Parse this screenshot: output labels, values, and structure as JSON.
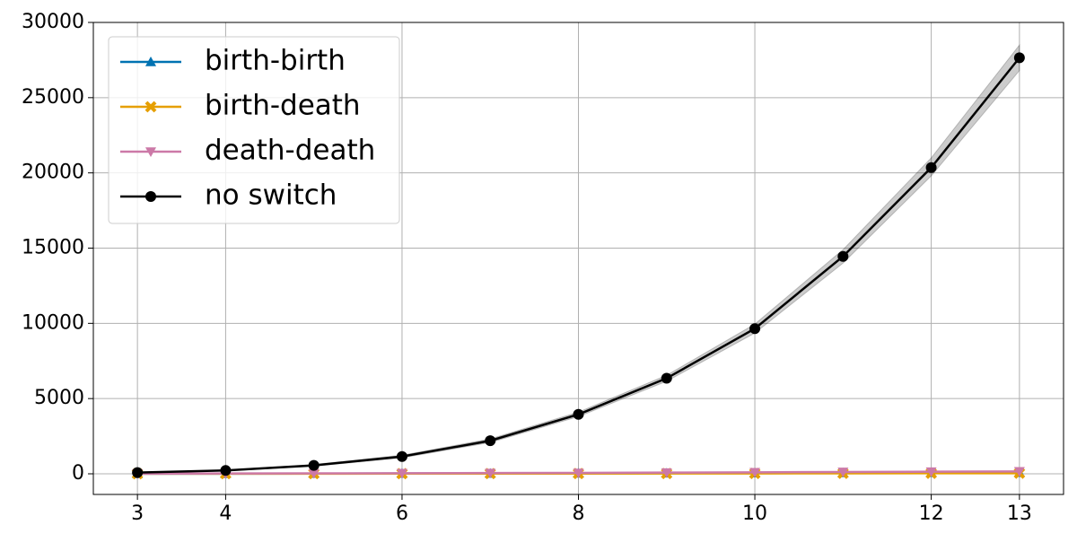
{
  "chart_data": {
    "type": "line",
    "x": [
      3,
      4,
      5,
      6,
      7,
      8,
      9,
      10,
      11,
      12,
      13
    ],
    "xlim": [
      2.5,
      13.5
    ],
    "xticks": [
      3,
      4,
      6,
      8,
      10,
      12,
      13
    ],
    "ylim": [
      -1372,
      30000
    ],
    "yticks": [
      0,
      5000,
      10000,
      15000,
      20000,
      25000,
      30000
    ],
    "grid": true,
    "legend": "upper left",
    "series": [
      {
        "name": "birth-birth",
        "color": "#0072b2",
        "marker": "triangle-up",
        "values": [
          5,
          10,
          15,
          20,
          25,
          30,
          40,
          50,
          60,
          70,
          80
        ]
      },
      {
        "name": "birth-death",
        "color": "#e69f00",
        "marker": "x",
        "values": [
          5,
          8,
          10,
          12,
          15,
          18,
          20,
          25,
          30,
          35,
          40
        ]
      },
      {
        "name": "death-death",
        "color": "#cc79a7",
        "marker": "triangle-down",
        "values": [
          10,
          20,
          30,
          40,
          50,
          60,
          80,
          100,
          120,
          140,
          160
        ]
      },
      {
        "name": "no switch",
        "color": "#000000",
        "marker": "circle",
        "values": [
          80,
          220,
          560,
          1150,
          2200,
          3950,
          6350,
          9650,
          14450,
          20350,
          27650
        ],
        "lower": [
          60,
          190,
          500,
          1060,
          2080,
          3800,
          6150,
          9350,
          14000,
          19800,
          26800
        ],
        "upper": [
          100,
          250,
          620,
          1240,
          2320,
          4100,
          6550,
          9950,
          14900,
          21000,
          28500
        ]
      }
    ]
  }
}
